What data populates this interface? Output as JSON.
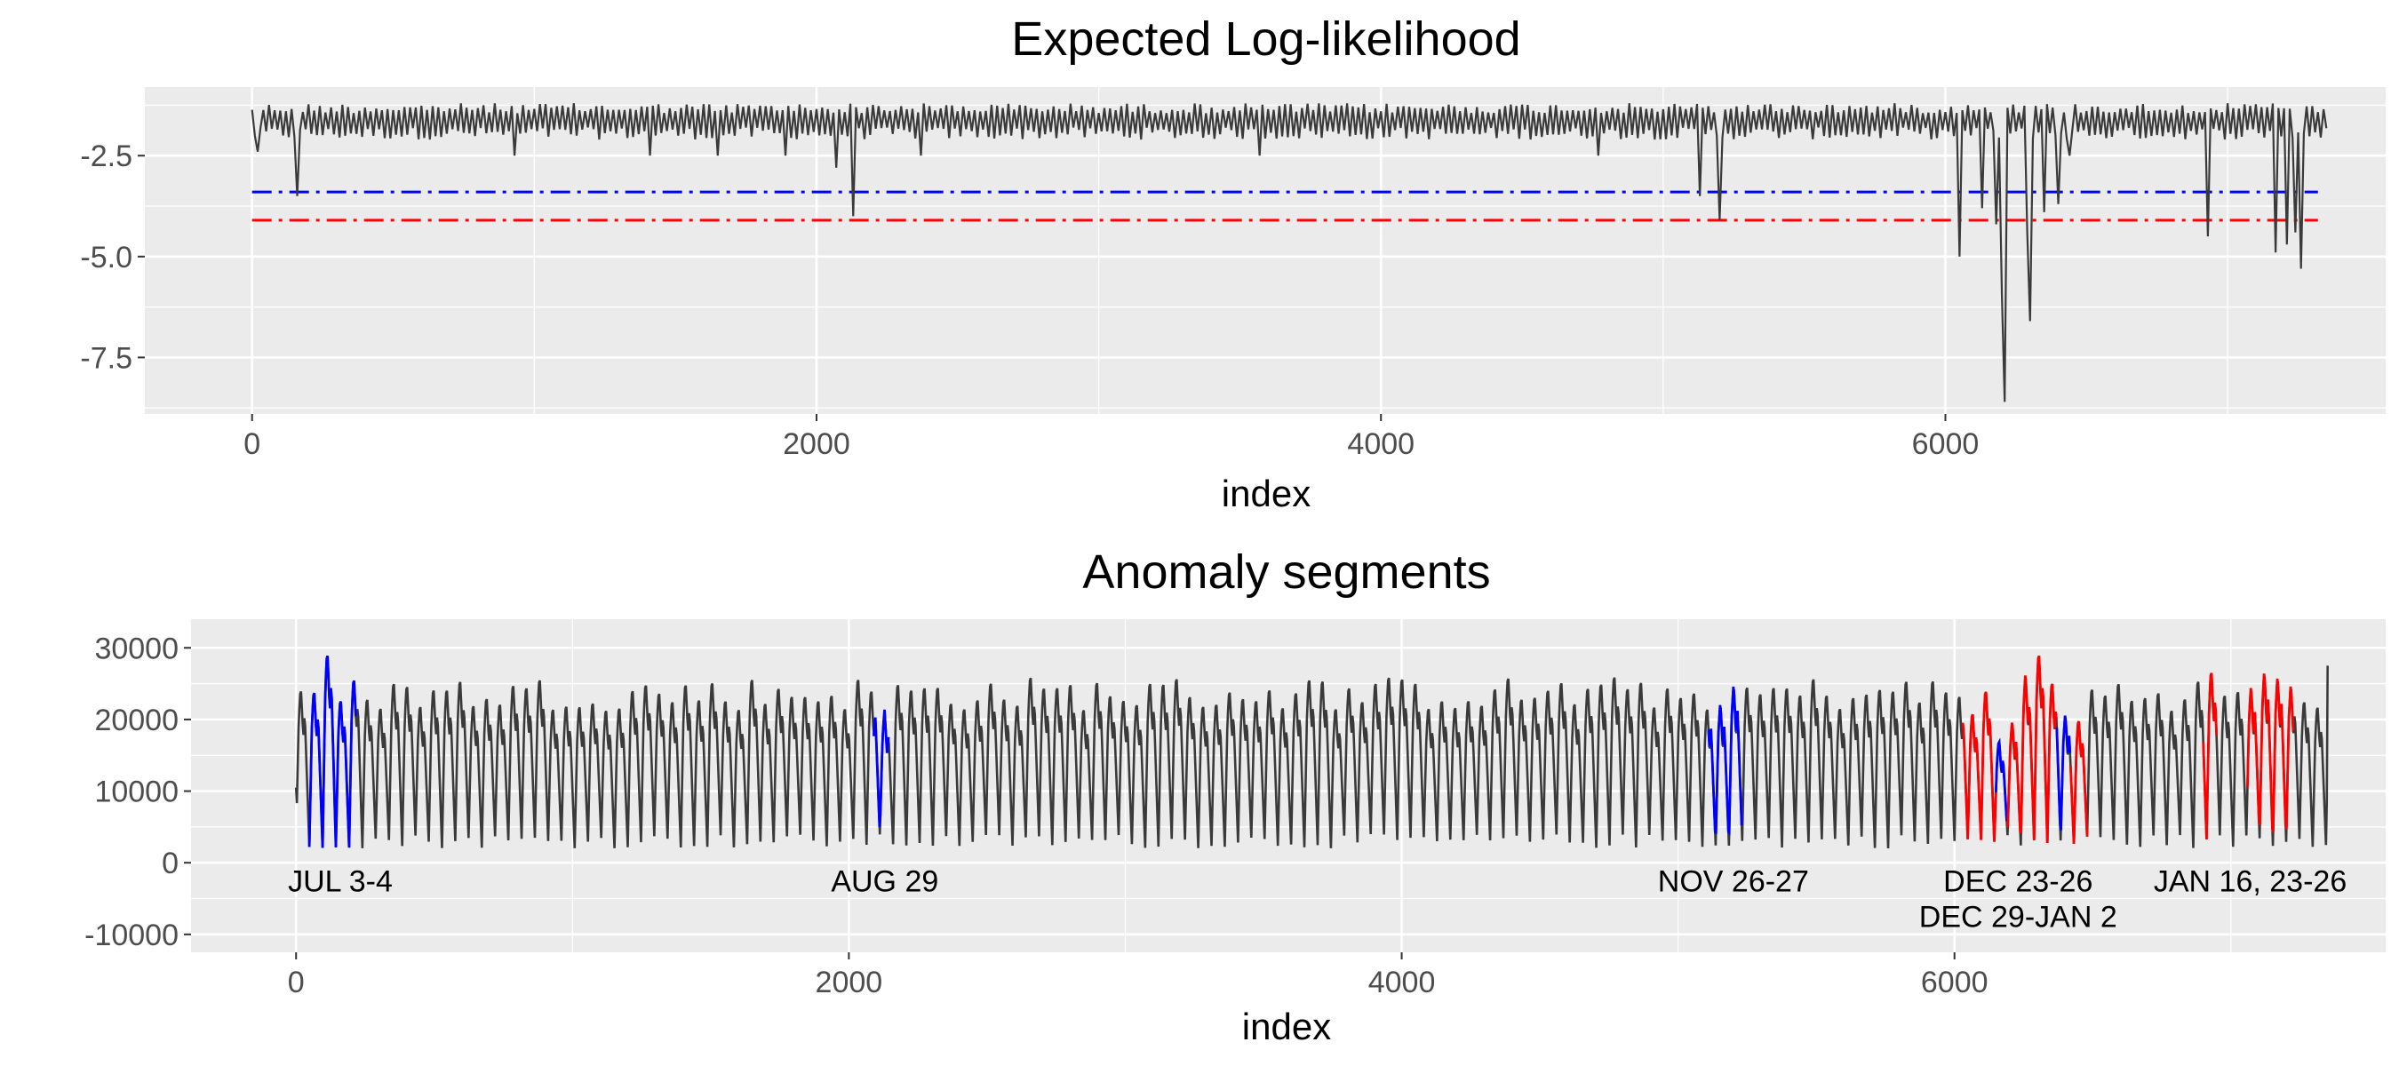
{
  "chart_data": [
    {
      "type": "line",
      "title": "Expected Log-likelihood",
      "xlabel": "index",
      "ylabel": "",
      "xlim": [
        -380,
        7560
      ],
      "ylim": [
        -8.9,
        -0.8
      ],
      "xticks": [
        0,
        2000,
        4000,
        6000
      ],
      "xtick_labels": [
        "0",
        "2000",
        "4000",
        "6000"
      ],
      "yticks": [
        -2.5,
        -5.0,
        -7.5
      ],
      "ytick_labels": [
        "-2.5",
        "-5.0",
        "-7.5"
      ],
      "grid": true,
      "series": [
        {
          "color": "#3a3a3a",
          "x_range": [
            0,
            7350
          ],
          "typical_range": [
            -2.1,
            -1.2
          ],
          "dips": [
            {
              "x": 20,
              "y": -2.4
            },
            {
              "x": 160,
              "y": -3.5
            },
            {
              "x": 930,
              "y": -2.5
            },
            {
              "x": 1410,
              "y": -2.5
            },
            {
              "x": 1650,
              "y": -2.5
            },
            {
              "x": 1890,
              "y": -2.5
            },
            {
              "x": 2070,
              "y": -2.8
            },
            {
              "x": 2130,
              "y": -4.0
            },
            {
              "x": 2370,
              "y": -2.5
            },
            {
              "x": 3570,
              "y": -2.5
            },
            {
              "x": 4770,
              "y": -2.5
            },
            {
              "x": 5130,
              "y": -3.5
            },
            {
              "x": 5200,
              "y": -4.1
            },
            {
              "x": 6050,
              "y": -5.0
            },
            {
              "x": 6130,
              "y": -3.8
            },
            {
              "x": 6180,
              "y": -4.2
            },
            {
              "x": 6200,
              "y": -5.9
            },
            {
              "x": 6210,
              "y": -8.6
            },
            {
              "x": 6290,
              "y": -4.4
            },
            {
              "x": 6300,
              "y": -6.6
            },
            {
              "x": 6350,
              "y": -3.9
            },
            {
              "x": 6400,
              "y": -3.7
            },
            {
              "x": 6440,
              "y": -2.5
            },
            {
              "x": 6930,
              "y": -4.5
            },
            {
              "x": 7170,
              "y": -4.9
            },
            {
              "x": 7210,
              "y": -4.7
            },
            {
              "x": 7240,
              "y": -4.4
            },
            {
              "x": 7260,
              "y": -5.3
            }
          ]
        }
      ],
      "hlines": [
        {
          "y": -3.4,
          "color": "#0000ff",
          "style": "dashdot",
          "x_range": [
            0,
            7320
          ]
        },
        {
          "y": -4.1,
          "color": "#ff0000",
          "style": "dashdot",
          "x_range": [
            0,
            7320
          ]
        }
      ]
    },
    {
      "type": "line",
      "title": "Anomaly segments",
      "xlabel": "index",
      "ylabel": "",
      "xlim": [
        -380,
        7560
      ],
      "ylim": [
        -12500,
        34000
      ],
      "xticks": [
        0,
        2000,
        4000,
        6000
      ],
      "xtick_labels": [
        "0",
        "2000",
        "4000",
        "6000"
      ],
      "yticks": [
        30000,
        20000,
        10000,
        0,
        -10000
      ],
      "ytick_labels": [
        "30000",
        "20000",
        "10000",
        "0",
        "-10000"
      ],
      "grid": true,
      "series": [
        {
          "color": "#3a3a3a",
          "x_range": [
            0,
            7350
          ],
          "period": 48,
          "trough_range": [
            2000,
            4000
          ],
          "peak_range": [
            22000,
            27000
          ],
          "start_value": 10500,
          "end_value": 27500
        }
      ],
      "highlighted_segments": [
        {
          "x_range": [
            48,
            216
          ],
          "color": "#0000ff",
          "peak": 30000
        },
        {
          "x_range": [
            2090,
            2145
          ],
          "color": "#0000ff",
          "peak": 21500
        },
        {
          "x_range": [
            5110,
            5230
          ],
          "color": "#0000ff",
          "peak": 22500
        },
        {
          "x_range": [
            6030,
            6150
          ],
          "color": "#ff0000",
          "peak": 21500
        },
        {
          "x_range": [
            6150,
            6190
          ],
          "color": "#0000ff",
          "peak": 17500
        },
        {
          "x_range": [
            6190,
            6270
          ],
          "color": "#ff0000",
          "peak": 20000
        },
        {
          "x_range": [
            6270,
            6370
          ],
          "color": "#ff0000",
          "peak": 30000
        },
        {
          "x_range": [
            6370,
            6420
          ],
          "color": "#0000ff",
          "peak": 21000
        },
        {
          "x_range": [
            6420,
            6480
          ],
          "color": "#ff0000",
          "peak": 20500
        },
        {
          "x_range": [
            6900,
            6950
          ],
          "color": "#ff0000",
          "peak": 27500
        },
        {
          "x_range": [
            7060,
            7230
          ],
          "color": "#ff0000",
          "peak": 27000
        }
      ],
      "annotations": [
        {
          "text": "JUL 3-4",
          "x": 160,
          "y": -2500
        },
        {
          "text": "AUG 29",
          "x": 2130,
          "y": -2500
        },
        {
          "text": "NOV 26-27",
          "x": 5200,
          "y": -2500
        },
        {
          "text": "DEC 23-26",
          "x": 6230,
          "y": -2500
        },
        {
          "text": "DEC 29-JAN 2",
          "x": 6230,
          "y": -7500
        },
        {
          "text": "JAN 16, 23-26",
          "x": 7070,
          "y": -2500
        }
      ]
    }
  ]
}
